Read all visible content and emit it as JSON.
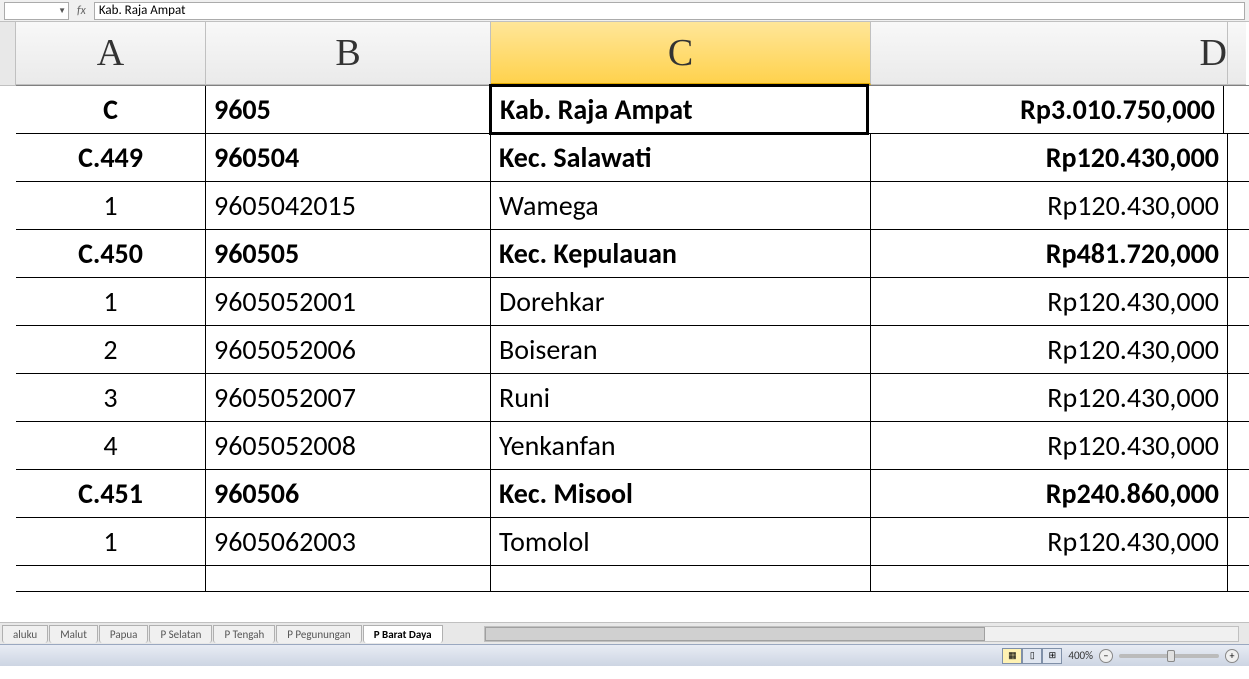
{
  "formula_bar": {
    "name_box": "",
    "fx_label": "fx",
    "formula_value": "Kab.  Raja  Ampat"
  },
  "columns": {
    "a": "A",
    "b": "B",
    "c": "C",
    "d": "D"
  },
  "col_widths": {
    "a": 190,
    "b": 285,
    "c": 380,
    "d": 357
  },
  "selected_column": "c",
  "rows": [
    {
      "a": "C",
      "b": "9605",
      "c": "Kab.  Raja  Ampat",
      "d": "Rp3.010.750,000",
      "bold": true,
      "selected_cell": "c"
    },
    {
      "a": "C.449",
      "b": "960504",
      "c": "Kec.  Salawati",
      "d": "Rp120.430,000",
      "bold": true
    },
    {
      "a": "1",
      "b": "9605042015",
      "c": "Wamega",
      "d": "Rp120.430,000",
      "bold": false
    },
    {
      "a": "C.450",
      "b": "960505",
      "c": "Kec.  Kepulauan",
      "d": "Rp481.720,000",
      "bold": true
    },
    {
      "a": "1",
      "b": "9605052001",
      "c": "Dorehkar",
      "d": "Rp120.430,000",
      "bold": false
    },
    {
      "a": "2",
      "b": "9605052006",
      "c": "Boiseran",
      "d": "Rp120.430,000",
      "bold": false
    },
    {
      "a": "3",
      "b": "9605052007",
      "c": "Runi",
      "d": "Rp120.430,000",
      "bold": false
    },
    {
      "a": "4",
      "b": "9605052008",
      "c": "Yenkanfan",
      "d": "Rp120.430,000",
      "bold": false
    },
    {
      "a": "C.451",
      "b": "960506",
      "c": "Kec.  Misool",
      "d": "Rp240.860,000",
      "bold": true
    },
    {
      "a": "1",
      "b": "9605062003",
      "c": "Tomolol",
      "d": "Rp120.430,000",
      "bold": false
    }
  ],
  "partial_row": {
    "a": "",
    "b": "",
    "c": "",
    "d": ""
  },
  "sheet_tabs": [
    {
      "label": "aluku",
      "active": false
    },
    {
      "label": "Malut",
      "active": false
    },
    {
      "label": "Papua",
      "active": false
    },
    {
      "label": "P Selatan",
      "active": false
    },
    {
      "label": "P Tengah",
      "active": false
    },
    {
      "label": "P Pegunungan",
      "active": false
    },
    {
      "label": "P Barat Daya",
      "active": true
    }
  ],
  "status_bar": {
    "zoom_level": "400%"
  },
  "colors": {
    "selected_col_bg_top": "#ffe699",
    "selected_col_bg_bottom": "#ffd24d",
    "header_bg_top": "#f8f8f8",
    "header_bg_bottom": "#eaeaea",
    "grid_border": "#000000",
    "status_bg_top": "#e8ecf4",
    "status_bg_bottom": "#cdd5e3"
  }
}
